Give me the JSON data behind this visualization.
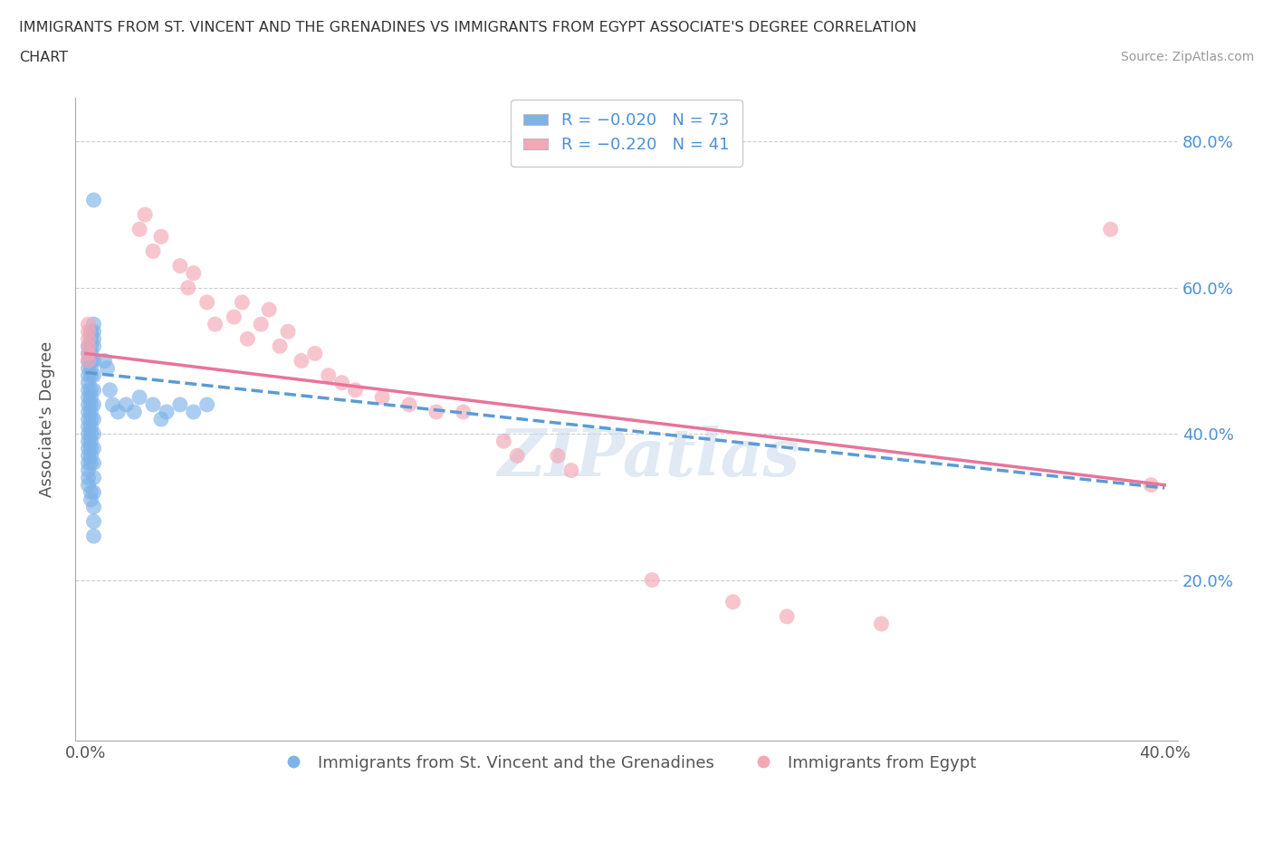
{
  "title_line1": "IMMIGRANTS FROM ST. VINCENT AND THE GRENADINES VS IMMIGRANTS FROM EGYPT ASSOCIATE'S DEGREE CORRELATION",
  "title_line2": "CHART",
  "source_text": "Source: ZipAtlas.com",
  "ylabel": "Associate's Degree",
  "blue_color": "#7EB3E8",
  "pink_color": "#F4A7B5",
  "blue_line_color": "#5B9BD5",
  "pink_line_color": "#E8749A",
  "legend_label_bottom_blue": "Immigrants from St. Vincent and the Grenadines",
  "legend_label_bottom_pink": "Immigrants from Egypt",
  "watermark": "ZIPatlas",
  "xlim": [
    -0.004,
    0.405
  ],
  "ylim": [
    -0.02,
    0.86
  ],
  "x_ticks": [
    0.0,
    0.1,
    0.2,
    0.3,
    0.4
  ],
  "y_ticks": [
    0.0,
    0.2,
    0.4,
    0.6,
    0.8
  ],
  "blue_scatter_x": [
    0.001,
    0.001,
    0.001,
    0.001,
    0.001,
    0.001,
    0.001,
    0.001,
    0.001,
    0.001,
    0.001,
    0.001,
    0.001,
    0.001,
    0.001,
    0.001,
    0.001,
    0.001,
    0.001,
    0.001,
    0.002,
    0.002,
    0.002,
    0.002,
    0.002,
    0.002,
    0.002,
    0.002,
    0.002,
    0.002,
    0.002,
    0.002,
    0.002,
    0.002,
    0.002,
    0.002,
    0.002,
    0.002,
    0.002,
    0.002,
    0.003,
    0.003,
    0.003,
    0.003,
    0.003,
    0.003,
    0.003,
    0.003,
    0.003,
    0.003,
    0.003,
    0.003,
    0.003,
    0.003,
    0.003,
    0.003,
    0.003,
    0.003,
    0.007,
    0.008,
    0.009,
    0.01,
    0.012,
    0.015,
    0.018,
    0.02,
    0.025,
    0.028,
    0.03,
    0.035,
    0.04,
    0.045
  ],
  "blue_scatter_y": [
    0.52,
    0.51,
    0.5,
    0.49,
    0.48,
    0.47,
    0.46,
    0.45,
    0.44,
    0.43,
    0.42,
    0.41,
    0.4,
    0.39,
    0.38,
    0.37,
    0.36,
    0.35,
    0.34,
    0.33,
    0.54,
    0.53,
    0.52,
    0.51,
    0.5,
    0.49,
    0.48,
    0.46,
    0.45,
    0.44,
    0.43,
    0.42,
    0.41,
    0.4,
    0.39,
    0.38,
    0.37,
    0.36,
    0.32,
    0.31,
    0.55,
    0.54,
    0.53,
    0.52,
    0.5,
    0.48,
    0.46,
    0.44,
    0.42,
    0.4,
    0.38,
    0.36,
    0.34,
    0.32,
    0.3,
    0.28,
    0.26,
    0.72,
    0.5,
    0.49,
    0.46,
    0.44,
    0.43,
    0.44,
    0.43,
    0.45,
    0.44,
    0.42,
    0.43,
    0.44,
    0.43,
    0.44
  ],
  "pink_scatter_x": [
    0.001,
    0.001,
    0.001,
    0.001,
    0.001,
    0.001,
    0.02,
    0.022,
    0.025,
    0.028,
    0.035,
    0.038,
    0.04,
    0.045,
    0.048,
    0.055,
    0.058,
    0.06,
    0.065,
    0.068,
    0.072,
    0.075,
    0.08,
    0.085,
    0.09,
    0.095,
    0.1,
    0.11,
    0.12,
    0.13,
    0.14,
    0.155,
    0.16,
    0.175,
    0.18,
    0.21,
    0.24,
    0.26,
    0.295,
    0.38,
    0.395
  ],
  "pink_scatter_y": [
    0.52,
    0.51,
    0.55,
    0.54,
    0.53,
    0.5,
    0.68,
    0.7,
    0.65,
    0.67,
    0.63,
    0.6,
    0.62,
    0.58,
    0.55,
    0.56,
    0.58,
    0.53,
    0.55,
    0.57,
    0.52,
    0.54,
    0.5,
    0.51,
    0.48,
    0.47,
    0.46,
    0.45,
    0.44,
    0.43,
    0.43,
    0.39,
    0.37,
    0.37,
    0.35,
    0.2,
    0.17,
    0.15,
    0.14,
    0.68,
    0.33
  ],
  "blue_trend_x": [
    0.0,
    0.4
  ],
  "blue_trend_y": [
    0.484,
    0.326
  ],
  "pink_trend_x": [
    0.0,
    0.4
  ],
  "pink_trend_y": [
    0.51,
    0.33
  ]
}
